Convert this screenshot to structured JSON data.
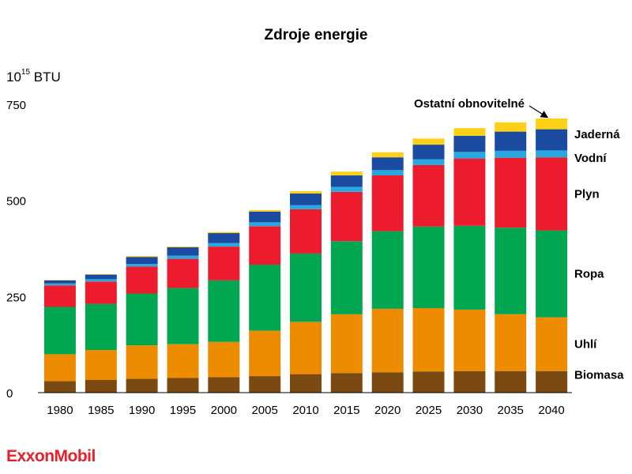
{
  "chart_data": {
    "type": "bar",
    "stacked": true,
    "title": "Zdroje energie",
    "unit": {
      "base": "10",
      "exponent": "15",
      "suffix": " BTU"
    },
    "categories": [
      "1980",
      "1985",
      "1990",
      "1995",
      "2000",
      "2005",
      "2010",
      "2015",
      "2020",
      "2025",
      "2030",
      "2035",
      "2040"
    ],
    "ylim": [
      0,
      750
    ],
    "yticks": [
      "0",
      "250",
      "500",
      "750"
    ],
    "series": [
      {
        "name": "Biomasa",
        "color": "#7b4a12",
        "values": [
          30,
          33,
          36,
          38,
          40,
          43,
          48,
          51,
          53,
          55,
          56,
          56,
          56
        ]
      },
      {
        "name": "Uhlí",
        "color": "#ee8c00",
        "values": [
          70,
          78,
          87,
          88,
          92,
          118,
          136,
          153,
          165,
          165,
          160,
          148,
          140
        ]
      },
      {
        "name": "Ropa",
        "color": "#00a650",
        "values": [
          123,
          120,
          135,
          146,
          160,
          172,
          178,
          190,
          202,
          212,
          218,
          225,
          226
        ]
      },
      {
        "name": "Plyn",
        "color": "#ec1c2e",
        "values": [
          56,
          58,
          70,
          76,
          88,
          100,
          115,
          128,
          145,
          160,
          175,
          182,
          190
        ]
      },
      {
        "name": "Vodní",
        "color": "#29a8e0",
        "values": [
          5,
          6,
          7,
          8,
          9,
          10,
          11,
          13,
          14,
          15,
          17,
          18,
          18
        ]
      },
      {
        "name": "Jaderná",
        "color": "#1b4aa1",
        "values": [
          8,
          12,
          18,
          22,
          26,
          28,
          30,
          30,
          33,
          38,
          42,
          50,
          55
        ]
      },
      {
        "name": "Ostatní obnovitelné",
        "color": "#fcd116",
        "values": [
          1,
          1,
          2,
          2,
          3,
          4,
          6,
          10,
          13,
          16,
          20,
          24,
          28
        ]
      }
    ]
  },
  "logo": {
    "text": "ExxonMobil",
    "color": "#e8202a"
  }
}
